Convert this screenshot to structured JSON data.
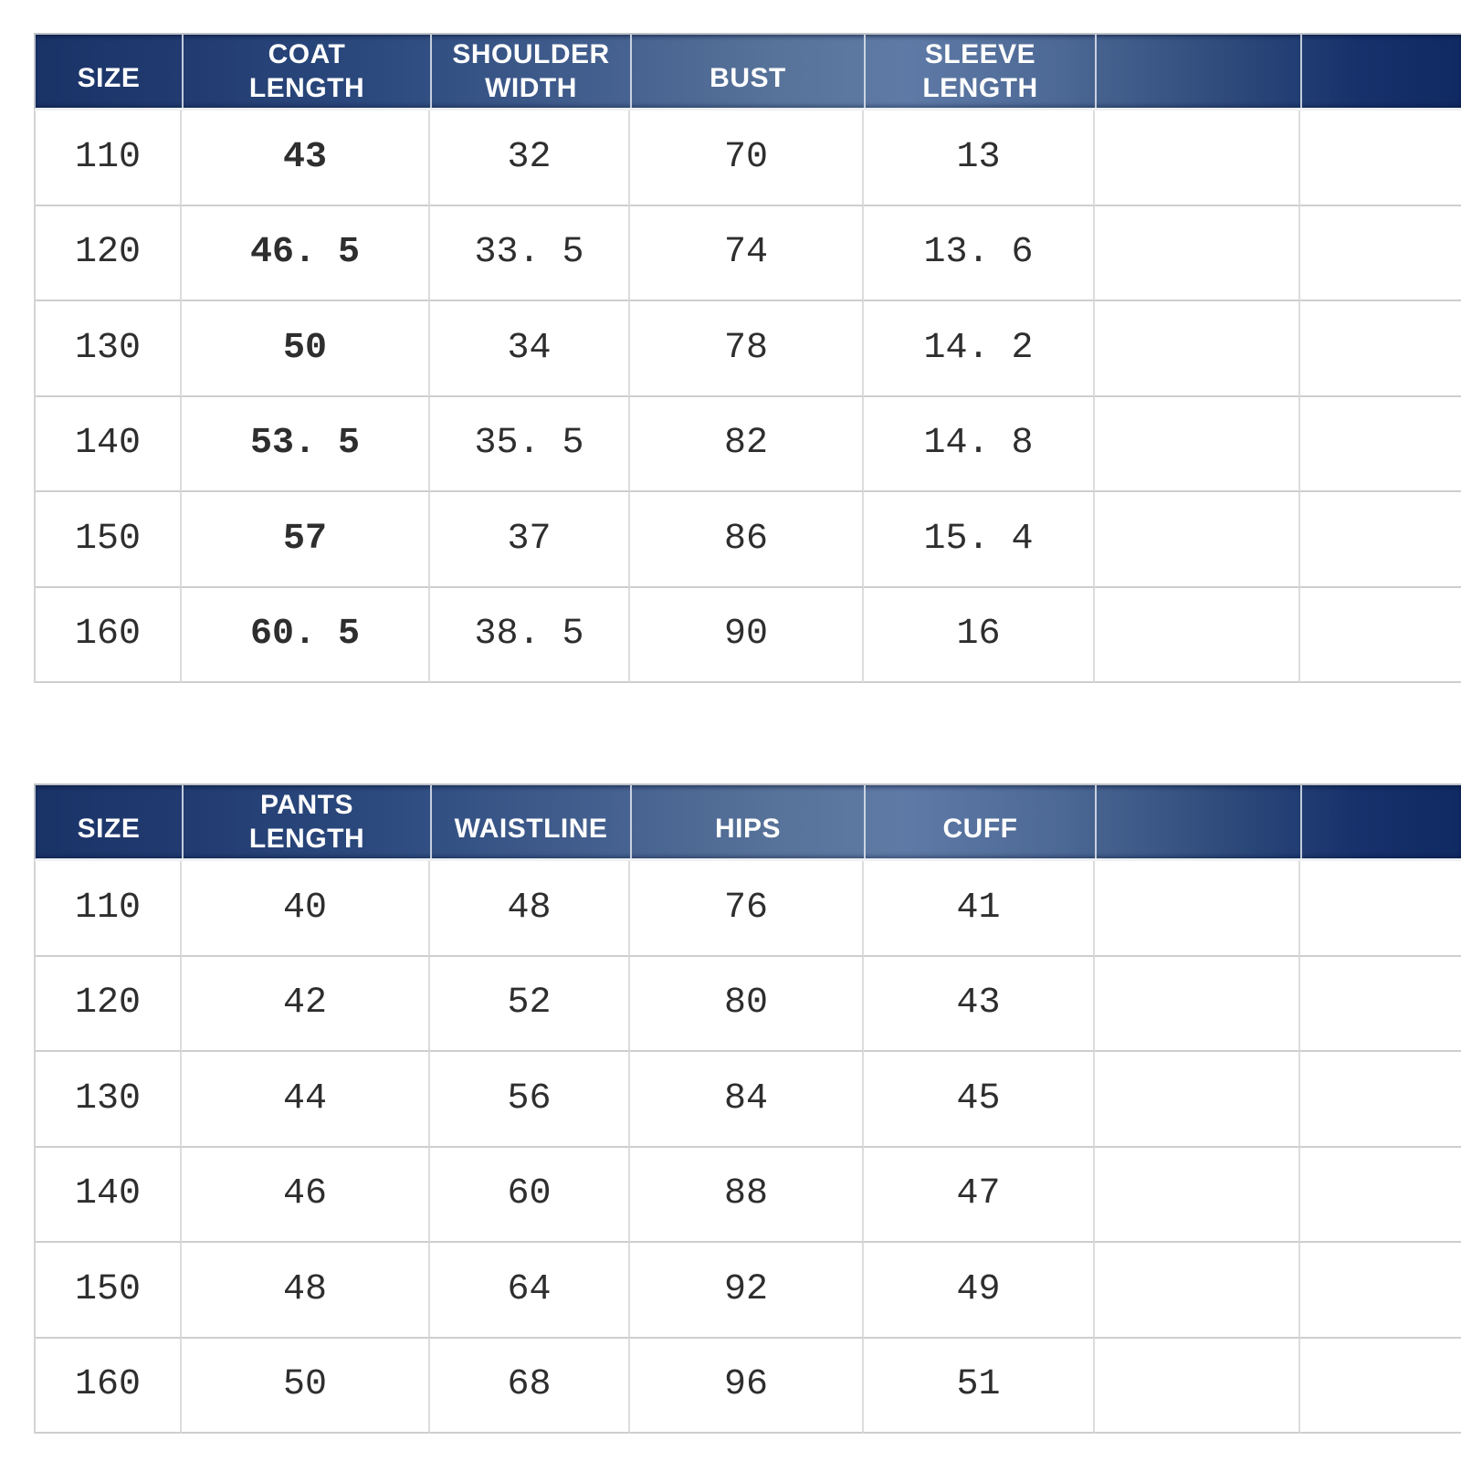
{
  "colors": {
    "header_dark_left": "#1a3367",
    "header_light_mid": "#5f7aa6",
    "header_dark_right": "#102a63",
    "header_text": "#ffffff",
    "body_text": "#2e2e2e",
    "grid_line": "#cecece"
  },
  "tables": [
    {
      "columns": [
        "SIZE",
        "COAT\nLENGTH",
        "SHOULDER\nWIDTH",
        "BUST",
        "SLEEVE\nLENGTH",
        "",
        ""
      ],
      "rows": [
        [
          "110",
          "43",
          "32",
          "70",
          "13",
          "",
          ""
        ],
        [
          "120",
          "46. 5",
          "33. 5",
          "74",
          "13. 6",
          "",
          ""
        ],
        [
          "130",
          "50",
          "34",
          "78",
          "14. 2",
          "",
          ""
        ],
        [
          "140",
          "53. 5",
          "35. 5",
          "82",
          "14. 8",
          "",
          ""
        ],
        [
          "150",
          "57",
          "37",
          "86",
          "15. 4",
          "",
          ""
        ],
        [
          "160",
          "60. 5",
          "38. 5",
          "90",
          "16",
          "",
          ""
        ]
      ]
    },
    {
      "columns": [
        "SIZE",
        "PANTS\nLENGTH",
        "WAISTLINE",
        "HIPS",
        "CUFF",
        "",
        ""
      ],
      "rows": [
        [
          "110",
          "40",
          "48",
          "76",
          "41",
          "",
          ""
        ],
        [
          "120",
          "42",
          "52",
          "80",
          "43",
          "",
          ""
        ],
        [
          "130",
          "44",
          "56",
          "84",
          "45",
          "",
          ""
        ],
        [
          "140",
          "46",
          "60",
          "88",
          "47",
          "",
          ""
        ],
        [
          "150",
          "48",
          "64",
          "92",
          "49",
          "",
          ""
        ],
        [
          "160",
          "50",
          "68",
          "96",
          "51",
          "",
          ""
        ]
      ]
    }
  ]
}
